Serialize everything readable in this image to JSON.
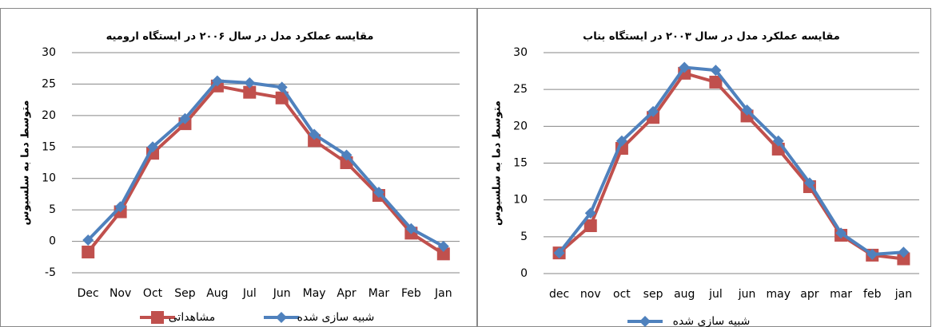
{
  "chart_data": [
    {
      "type": "line",
      "title": "مقایسه عملکرد مدل در سال ۲۰۰۶ در ایستگاه ارومیه",
      "y_label": "متوسط دما به سلسیوس",
      "categories": [
        "Dec",
        "Nov",
        "Oct",
        "Sep",
        "Aug",
        "Jul",
        "Jun",
        "May",
        "Apr",
        "Mar",
        "Feb",
        "Jan"
      ],
      "series": [
        {
          "name": "مشاهداتی",
          "color": "#c0504d",
          "marker": "square",
          "values": [
            -1.7,
            4.7,
            14,
            18.7,
            24.7,
            23.7,
            22.8,
            16,
            12.5,
            7.3,
            1.3,
            -2
          ]
        },
        {
          "name": "شبیه سازی شده",
          "color": "#4f81bd",
          "marker": "diamond",
          "values": [
            0.2,
            5.5,
            15,
            19.5,
            25.5,
            25.2,
            24.5,
            17,
            13.7,
            7.8,
            2,
            -0.8
          ]
        }
      ],
      "ylim": [
        -5,
        30
      ],
      "yticks": [
        -5,
        0,
        5,
        10,
        15,
        20,
        25,
        30
      ],
      "grid": true,
      "legend": "bottom"
    },
    {
      "type": "line",
      "title": "مقایسه عملکرد مدل در سال ۲۰۰۳ در ایستگاه بناب",
      "y_label": "متوسط دما به سلسیوس",
      "categories": [
        "dec",
        "nov",
        "oct",
        "sep",
        "aug",
        "jul",
        "jun",
        "may",
        "apr",
        "mar",
        "feb",
        "jan"
      ],
      "series": [
        {
          "color": "#c0504d",
          "marker": "square",
          "values": [
            2.8,
            6.5,
            17,
            21.2,
            27.2,
            26,
            21.4,
            16.9,
            11.8,
            5.2,
            2.5,
            2
          ]
        },
        {
          "name": "شبیه سازی شده",
          "color": "#4f81bd",
          "marker": "diamond",
          "values": [
            2.8,
            8.2,
            18,
            22,
            28,
            27.6,
            22.2,
            18,
            12.3,
            5.5,
            2.6,
            2.9
          ]
        }
      ],
      "ylim": [
        0,
        30
      ],
      "yticks": [
        0,
        5,
        10,
        15,
        20,
        25,
        30
      ],
      "grid": true,
      "legend": "bottom"
    }
  ]
}
